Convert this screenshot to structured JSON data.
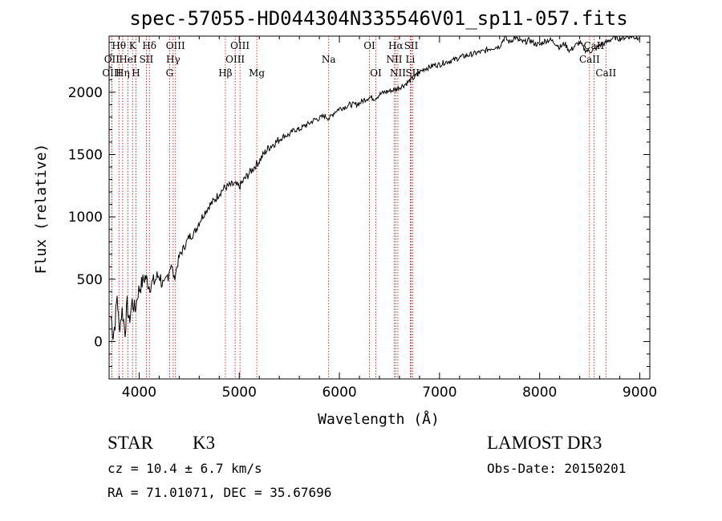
{
  "chart_data": {
    "type": "line",
    "title": "spec-57055-HD044304N335546V01_sp11-057.fits",
    "xlabel": "Wavelength (Å)",
    "ylabel": "Flux (relative)",
    "xlim": [
      3700,
      9100
    ],
    "ylim": [
      -300,
      2450
    ],
    "xticks": [
      4000,
      5000,
      6000,
      7000,
      8000,
      9000
    ],
    "yticks": [
      0,
      500,
      1000,
      1500,
      2000
    ],
    "series": [
      {
        "name": "flux",
        "x": [
          3720,
          3740,
          3760,
          3780,
          3800,
          3830,
          3860,
          3880,
          3900,
          3930,
          3960,
          3990,
          4030,
          4060,
          4100,
          4150,
          4200,
          4250,
          4290,
          4320,
          4350,
          4400,
          4450,
          4500,
          4550,
          4600,
          4650,
          4700,
          4750,
          4800,
          4850,
          4900,
          4950,
          5000,
          5050,
          5100,
          5150,
          5200,
          5250,
          5300,
          5350,
          5400,
          5450,
          5500,
          5550,
          5600,
          5650,
          5700,
          5750,
          5800,
          5850,
          5900,
          5950,
          6000,
          6050,
          6100,
          6150,
          6200,
          6250,
          6300,
          6350,
          6400,
          6450,
          6500,
          6550,
          6600,
          6650,
          6700,
          6750,
          6800,
          6850,
          6900,
          6950,
          7000,
          7050,
          7100,
          7150,
          7200,
          7250,
          7300,
          7350,
          7400,
          7450,
          7500,
          7550,
          7600,
          7650,
          7700,
          7750,
          7800,
          7850,
          7900,
          7950,
          8000,
          8050,
          8100,
          8150,
          8200,
          8250,
          8300,
          8350,
          8400,
          8450,
          8500,
          8550,
          8600,
          8650,
          8700,
          8750,
          8800,
          8850,
          8900,
          8950,
          8990
        ],
        "y": [
          200,
          50,
          150,
          380,
          100,
          250,
          80,
          300,
          150,
          320,
          250,
          400,
          470,
          520,
          450,
          480,
          540,
          420,
          550,
          620,
          500,
          680,
          760,
          840,
          870,
          960,
          1030,
          1090,
          1130,
          1190,
          1230,
          1250,
          1260,
          1240,
          1300,
          1350,
          1400,
          1450,
          1510,
          1560,
          1590,
          1620,
          1650,
          1660,
          1700,
          1700,
          1730,
          1750,
          1780,
          1790,
          1810,
          1790,
          1840,
          1870,
          1880,
          1900,
          1900,
          1910,
          1940,
          1960,
          1950,
          1980,
          2000,
          2010,
          2020,
          2040,
          2060,
          2090,
          2120,
          2160,
          2190,
          2200,
          2220,
          2220,
          2240,
          2250,
          2260,
          2280,
          2290,
          2300,
          2310,
          2320,
          2330,
          2350,
          2360,
          2370,
          2440,
          2400,
          2440,
          2410,
          2400,
          2420,
          2390,
          2380,
          2410,
          2420,
          2400,
          2360,
          2390,
          2330,
          2370,
          2400,
          2340,
          2330,
          2340,
          2380,
          2390,
          2420,
          2440,
          2430,
          2440,
          2450,
          2440,
          2440
        ]
      }
    ],
    "spectral_lines": [
      {
        "label": "Hθ",
        "wavelength": 3798,
        "row": 1
      },
      {
        "label": "OII",
        "wavelength": 3727,
        "row": 2
      },
      {
        "label": "OIII",
        "wavelength": 3727,
        "row": 3
      },
      {
        "label": "K",
        "wavelength": 3934,
        "row": 1
      },
      {
        "label": "HeI",
        "wavelength": 3889,
        "row": 2
      },
      {
        "label": "Hη",
        "wavelength": 3835,
        "row": 3
      },
      {
        "label": "Hδ",
        "wavelength": 4102,
        "row": 1
      },
      {
        "label": "SII",
        "wavelength": 4072,
        "row": 2
      },
      {
        "label": "H",
        "wavelength": 3968,
        "row": 3
      },
      {
        "label": "OIII",
        "wavelength": 4363,
        "row": 1
      },
      {
        "label": "Hγ",
        "wavelength": 4340,
        "row": 2
      },
      {
        "label": "G",
        "wavelength": 4304,
        "row": 3
      },
      {
        "label": "OIII",
        "wavelength": 5007,
        "row": 1
      },
      {
        "label": "OIII",
        "wavelength": 4959,
        "row": 2
      },
      {
        "label": "Hβ",
        "wavelength": 4861,
        "row": 3
      },
      {
        "label": "Mg",
        "wavelength": 5175,
        "row": 3
      },
      {
        "label": "Na",
        "wavelength": 5893,
        "row": 2
      },
      {
        "label": "OI",
        "wavelength": 6300,
        "row": 1
      },
      {
        "label": "OI",
        "wavelength": 6364,
        "row": 3
      },
      {
        "label": "Hα",
        "wavelength": 6563,
        "row": 1
      },
      {
        "label": "SII",
        "wavelength": 6717,
        "row": 1
      },
      {
        "label": "NII",
        "wavelength": 6548,
        "row": 2
      },
      {
        "label": "Li",
        "wavelength": 6708,
        "row": 2
      },
      {
        "label": "NII",
        "wavelength": 6584,
        "row": 3
      },
      {
        "label": "SII",
        "wavelength": 6731,
        "row": 3
      },
      {
        "label": "CaII",
        "wavelength": 8542,
        "row": 1
      },
      {
        "label": "CaII",
        "wavelength": 8498,
        "row": 2
      },
      {
        "label": "CaII",
        "wavelength": 8662,
        "row": 3
      }
    ],
    "grid": false,
    "legend": "none"
  },
  "info": {
    "object_class": "STAR",
    "subclass": "K3",
    "survey": "LAMOST DR3",
    "redshift": "cz = 10.4 ± 6.7 km/s",
    "obs_date": "Obs-Date: 20150201",
    "coords": "RA =  71.01071, DEC =  35.67696"
  },
  "colors": {
    "line_marker": "#cc0000",
    "spectrum": "#000000"
  }
}
